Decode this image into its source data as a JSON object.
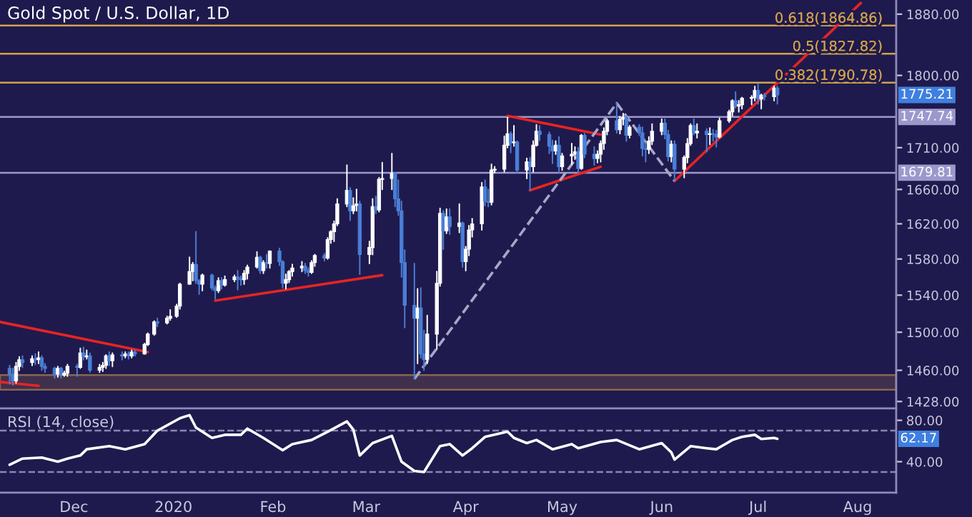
{
  "chart_data": [
    {
      "type": "candlestick",
      "title": "Gold Spot / U.S. Dollar, 1D",
      "log": "y",
      "tick_labels": "y",
      "xlim": [
        "2019-11-08",
        "2020-08-13"
      ],
      "ylim": [
        1421,
        1899
      ],
      "yticks": [
        {
          "value": 1428,
          "label": "1428.00"
        },
        {
          "value": 1460,
          "label": "1460.00"
        },
        {
          "value": 1500,
          "label": "1500.00"
        },
        {
          "value": 1540,
          "label": "1540.00"
        },
        {
          "value": 1580,
          "label": "1580.00"
        },
        {
          "value": 1620,
          "label": "1620.00"
        },
        {
          "value": 1660,
          "label": "1660.00"
        },
        {
          "value": 1710,
          "label": "1710.00"
        },
        {
          "value": 1800,
          "label": "1800.00"
        },
        {
          "value": 1880,
          "label": "1880.00"
        }
      ],
      "bands": [
        {
          "axis": "y",
          "from": 1440,
          "to": 1455,
          "color": "#8a6450"
        }
      ],
      "ref_lines": [
        {
          "axis": "y",
          "value": 1747.74,
          "label": "1747.74",
          "color": "#9d98cc",
          "line_style": "solid"
        },
        {
          "axis": "y",
          "value": 1679.81,
          "label": "1679.81",
          "color": "#9d98cc",
          "line_style": "solid"
        },
        {
          "axis": "y",
          "value": 1790.78,
          "label": "0.382(1790.78)",
          "color": "#d2a24a",
          "line_style": "solid"
        },
        {
          "axis": "y",
          "value": 1827.82,
          "label": "0.5(1827.82)",
          "color": "#d2a24a",
          "line_style": "solid"
        },
        {
          "axis": "y",
          "value": 1864.86,
          "label": "0.618(1864.86)",
          "color": "#d2a24a",
          "line_style": "solid"
        }
      ],
      "annotations": [
        "1775.21"
      ],
      "series": [
        {
          "type": "line",
          "color": "#e52424",
          "line_style": "solid",
          "x": [
            "2019-11-08",
            "2019-12-24"
          ],
          "values": [
            1511,
            1479
          ]
        },
        {
          "type": "line",
          "color": "#e52424",
          "line_style": "solid",
          "x": [
            "2019-11-08",
            "2019-11-20"
          ],
          "values": [
            1448,
            1444
          ]
        },
        {
          "type": "line",
          "color": "#e52424",
          "line_style": "solid",
          "x": [
            "2020-01-14",
            "2020-03-06"
          ],
          "values": [
            1534,
            1562
          ]
        },
        {
          "type": "line",
          "color": "#e52424",
          "line_style": "solid",
          "x": [
            "2020-04-14",
            "2020-05-13"
          ],
          "values": [
            1749,
            1726
          ]
        },
        {
          "type": "line",
          "color": "#e52424",
          "line_style": "solid",
          "x": [
            "2020-04-21",
            "2020-05-13"
          ],
          "values": [
            1659,
            1687
          ]
        },
        {
          "type": "line",
          "color": "#e52424",
          "line_style": "solid",
          "x": [
            "2020-06-05",
            "2020-08-02"
          ],
          "values": [
            1670,
            1895
          ]
        },
        {
          "type": "line",
          "color": "#a8a6c8",
          "line_style": "dashed",
          "x": [
            "2020-03-16",
            "2020-05-18",
            "2020-06-05"
          ],
          "values": [
            1451,
            1765,
            1670
          ]
        },
        {
          "type": "candlestick",
          "x": [
            "2019-11-11",
            "2019-11-12",
            "2019-11-13",
            "2019-11-14",
            "2019-11-15",
            "2019-11-18",
            "2019-11-19",
            "2019-11-20",
            "2019-11-21",
            "2019-11-22",
            "2019-11-25",
            "2019-11-26",
            "2019-11-27",
            "2019-11-28",
            "2019-11-29",
            "2019-12-02",
            "2019-12-03",
            "2019-12-04",
            "2019-12-05",
            "2019-12-06",
            "2019-12-09",
            "2019-12-10",
            "2019-12-11",
            "2019-12-12",
            "2019-12-13",
            "2019-12-16",
            "2019-12-17",
            "2019-12-18",
            "2019-12-19",
            "2019-12-20",
            "2019-12-23",
            "2019-12-24",
            "2019-12-26",
            "2019-12-27",
            "2019-12-30",
            "2019-12-31",
            "2020-01-02",
            "2020-01-03",
            "2020-01-06",
            "2020-01-07",
            "2020-01-08",
            "2020-01-09",
            "2020-01-10",
            "2020-01-13",
            "2020-01-14",
            "2020-01-15",
            "2020-01-16",
            "2020-01-17",
            "2020-01-20",
            "2020-01-21",
            "2020-01-22",
            "2020-01-23",
            "2020-01-24",
            "2020-01-27",
            "2020-01-28",
            "2020-01-29",
            "2020-01-30",
            "2020-01-31",
            "2020-02-03",
            "2020-02-04",
            "2020-02-05",
            "2020-02-06",
            "2020-02-07",
            "2020-02-10",
            "2020-02-11",
            "2020-02-12",
            "2020-02-13",
            "2020-02-14",
            "2020-02-17",
            "2020-02-18",
            "2020-02-19",
            "2020-02-20",
            "2020-02-21",
            "2020-02-24",
            "2020-02-25",
            "2020-02-26",
            "2020-02-27",
            "2020-02-28",
            "2020-03-02",
            "2020-03-03",
            "2020-03-04",
            "2020-03-05",
            "2020-03-06",
            "2020-03-09",
            "2020-03-10",
            "2020-03-11",
            "2020-03-12",
            "2020-03-13",
            "2020-03-16",
            "2020-03-17",
            "2020-03-18",
            "2020-03-19",
            "2020-03-20",
            "2020-03-23",
            "2020-03-24",
            "2020-03-25",
            "2020-03-26",
            "2020-03-27",
            "2020-03-30",
            "2020-03-31",
            "2020-04-01",
            "2020-04-02",
            "2020-04-03",
            "2020-04-06",
            "2020-04-07",
            "2020-04-08",
            "2020-04-09",
            "2020-04-10",
            "2020-04-13",
            "2020-04-14",
            "2020-04-15",
            "2020-04-16",
            "2020-04-17",
            "2020-04-20",
            "2020-04-21",
            "2020-04-22",
            "2020-04-23",
            "2020-04-24",
            "2020-04-27",
            "2020-04-28",
            "2020-04-29",
            "2020-04-30",
            "2020-05-01",
            "2020-05-04",
            "2020-05-05",
            "2020-05-06",
            "2020-05-07",
            "2020-05-08",
            "2020-05-11",
            "2020-05-12",
            "2020-05-13",
            "2020-05-14",
            "2020-05-15",
            "2020-05-18",
            "2020-05-19",
            "2020-05-20",
            "2020-05-21",
            "2020-05-22",
            "2020-05-25",
            "2020-05-26",
            "2020-05-27",
            "2020-05-28",
            "2020-05-29",
            "2020-06-01",
            "2020-06-02",
            "2020-06-03",
            "2020-06-04",
            "2020-06-05",
            "2020-06-08",
            "2020-06-09",
            "2020-06-10",
            "2020-06-11",
            "2020-06-12",
            "2020-06-15",
            "2020-06-16",
            "2020-06-17",
            "2020-06-18",
            "2020-06-19",
            "2020-06-22",
            "2020-06-23",
            "2020-06-24",
            "2020-06-25",
            "2020-06-26",
            "2020-06-29",
            "2020-06-30",
            "2020-07-01",
            "2020-07-02",
            "2020-07-03",
            "2020-07-06",
            "2020-07-07"
          ],
          "ohlc": [
            [
              1462,
              1465,
              1446,
              1456
            ],
            [
              1456,
              1462,
              1445,
              1449
            ],
            [
              1449,
              1468,
              1447,
              1464
            ],
            [
              1464,
              1474,
              1460,
              1471
            ],
            [
              1471,
              1475,
              1463,
              1468
            ],
            [
              1468,
              1475,
              1465,
              1472
            ],
            [
              1472,
              1477,
              1466,
              1471
            ],
            [
              1471,
              1479,
              1467,
              1473
            ],
            [
              1473,
              1475,
              1460,
              1464
            ],
            [
              1464,
              1467,
              1458,
              1462
            ],
            [
              1462,
              1463,
              1452,
              1456
            ],
            [
              1456,
              1464,
              1453,
              1462
            ],
            [
              1462,
              1463,
              1452,
              1455
            ],
            [
              1455,
              1459,
              1454,
              1457
            ],
            [
              1457,
              1466,
              1454,
              1464
            ],
            [
              1464,
              1466,
              1454,
              1463
            ],
            [
              1463,
              1483,
              1462,
              1478
            ],
            [
              1478,
              1484,
              1471,
              1474
            ],
            [
              1474,
              1481,
              1472,
              1475
            ],
            [
              1475,
              1478,
              1458,
              1460
            ],
            [
              1460,
              1466,
              1458,
              1463
            ],
            [
              1463,
              1468,
              1459,
              1465
            ],
            [
              1465,
              1476,
              1462,
              1475
            ],
            [
              1475,
              1479,
              1465,
              1470
            ],
            [
              1470,
              1478,
              1464,
              1476
            ],
            [
              1476,
              1479,
              1471,
              1475
            ],
            [
              1475,
              1479,
              1473,
              1477
            ],
            [
              1477,
              1479,
              1472,
              1475
            ],
            [
              1475,
              1481,
              1473,
              1479
            ],
            [
              1479,
              1481,
              1475,
              1477
            ],
            [
              1477,
              1488,
              1477,
              1487
            ],
            [
              1487,
              1499,
              1486,
              1498
            ],
            [
              1498,
              1512,
              1497,
              1511
            ],
            [
              1511,
              1515,
              1506,
              1510
            ],
            [
              1510,
              1517,
              1509,
              1515
            ],
            [
              1515,
              1524,
              1513,
              1517
            ],
            [
              1517,
              1530,
              1516,
              1528
            ],
            [
              1528,
              1553,
              1525,
              1552
            ],
            [
              1552,
              1582,
              1552,
              1566
            ],
            [
              1566,
              1576,
              1556,
              1574
            ],
            [
              1574,
              1611,
              1553,
              1556
            ],
            [
              1556,
              1557,
              1541,
              1552
            ],
            [
              1552,
              1563,
              1545,
              1562
            ],
            [
              1562,
              1563,
              1546,
              1548
            ],
            [
              1548,
              1550,
              1536,
              1545
            ],
            [
              1545,
              1559,
              1543,
              1556
            ],
            [
              1556,
              1559,
              1547,
              1551
            ],
            [
              1551,
              1561,
              1550,
              1557
            ],
            [
              1557,
              1562,
              1555,
              1560
            ],
            [
              1560,
              1567,
              1546,
              1558
            ],
            [
              1558,
              1561,
              1551,
              1557
            ],
            [
              1557,
              1567,
              1552,
              1564
            ],
            [
              1564,
              1573,
              1558,
              1571
            ],
            [
              1571,
              1588,
              1570,
              1582
            ],
            [
              1582,
              1583,
              1564,
              1567
            ],
            [
              1567,
              1578,
              1564,
              1576
            ],
            [
              1576,
              1585,
              1570,
              1575
            ],
            [
              1575,
              1589,
              1570,
              1589
            ],
            [
              1589,
              1592,
              1573,
              1577
            ],
            [
              1577,
              1578,
              1548,
              1553
            ],
            [
              1553,
              1563,
              1547,
              1557
            ],
            [
              1557,
              1567,
              1554,
              1566
            ],
            [
              1566,
              1574,
              1561,
              1570
            ],
            [
              1570,
              1577,
              1566,
              1572
            ],
            [
              1572,
              1575,
              1564,
              1567
            ],
            [
              1567,
              1570,
              1561,
              1565
            ],
            [
              1565,
              1578,
              1564,
              1576
            ],
            [
              1576,
              1585,
              1572,
              1584
            ],
            [
              1584,
              1586,
              1578,
              1581
            ],
            [
              1581,
              1604,
              1580,
              1602
            ],
            [
              1602,
              1612,
              1598,
              1611
            ],
            [
              1611,
              1623,
              1600,
              1620
            ],
            [
              1620,
              1649,
              1618,
              1643
            ],
            [
              1643,
              1689,
              1640,
              1659
            ],
            [
              1659,
              1662,
              1624,
              1635
            ],
            [
              1635,
              1650,
              1632,
              1641
            ],
            [
              1641,
              1660,
              1635,
              1643
            ],
            [
              1643,
              1646,
              1563,
              1585
            ],
            [
              1585,
              1600,
              1575,
              1593
            ],
            [
              1593,
              1649,
              1585,
              1640
            ],
            [
              1640,
              1652,
              1632,
              1636
            ],
            [
              1636,
              1674,
              1634,
              1672
            ],
            [
              1672,
              1692,
              1660,
              1673
            ],
            [
              1673,
              1703,
              1660,
              1679
            ],
            [
              1679,
              1680,
              1640,
              1649
            ],
            [
              1649,
              1671,
              1630,
              1635
            ],
            [
              1635,
              1646,
              1560,
              1576
            ],
            [
              1576,
              1590,
              1505,
              1529
            ],
            [
              1529,
              1575,
              1451,
              1515
            ],
            [
              1515,
              1547,
              1467,
              1526
            ],
            [
              1526,
              1548,
              1473,
              1477
            ],
            [
              1477,
              1502,
              1460,
              1471
            ],
            [
              1471,
              1518,
              1467,
              1498
            ],
            [
              1498,
              1566,
              1482,
              1553
            ],
            [
              1553,
              1638,
              1550,
              1632
            ],
            [
              1632,
              1635,
              1591,
              1612
            ],
            [
              1612,
              1637,
              1609,
              1628
            ],
            [
              1628,
              1637,
              1608,
              1617
            ],
            [
              1617,
              1643,
              1610,
              1621
            ],
            [
              1621,
              1622,
              1571,
              1577
            ],
            [
              1577,
              1594,
              1567,
              1591
            ],
            [
              1591,
              1618,
              1584,
              1613
            ],
            [
              1613,
              1626,
              1605,
              1620
            ],
            [
              1620,
              1668,
              1613,
              1663
            ],
            [
              1663,
              1671,
              1641,
              1646
            ],
            [
              1646,
              1660,
              1640,
              1645
            ],
            [
              1645,
              1690,
              1642,
              1683
            ],
            [
              1683,
              1687,
              1680,
              1684
            ],
            [
              1684,
              1724,
              1681,
              1713
            ],
            [
              1713,
              1747,
              1710,
              1727
            ],
            [
              1727,
              1729,
              1704,
              1716
            ],
            [
              1716,
              1737,
              1712,
              1717
            ],
            [
              1717,
              1718,
              1680,
              1683
            ],
            [
              1683,
              1697,
              1673,
              1693
            ],
            [
              1693,
              1698,
              1659,
              1687
            ],
            [
              1687,
              1718,
              1681,
              1713
            ],
            [
              1713,
              1738,
              1712,
              1730
            ],
            [
              1730,
              1737,
              1719,
              1726
            ],
            [
              1726,
              1729,
              1703,
              1712
            ],
            [
              1712,
              1719,
              1691,
              1706
            ],
            [
              1706,
              1718,
              1702,
              1713
            ],
            [
              1713,
              1723,
              1680,
              1687
            ],
            [
              1687,
              1703,
              1683,
              1700
            ],
            [
              1700,
              1715,
              1690,
              1702
            ],
            [
              1702,
              1711,
              1696,
              1705
            ],
            [
              1705,
              1710,
              1680,
              1685
            ],
            [
              1685,
              1726,
              1684,
              1725
            ],
            [
              1725,
              1727,
              1698,
              1702
            ],
            [
              1702,
              1711,
              1689,
              1697
            ],
            [
              1697,
              1706,
              1692,
              1702
            ],
            [
              1702,
              1718,
              1693,
              1715
            ],
            [
              1715,
              1734,
              1708,
              1730
            ],
            [
              1730,
              1745,
              1726,
              1743
            ],
            [
              1743,
              1765,
              1728,
              1732
            ],
            [
              1732,
              1748,
              1727,
              1745
            ],
            [
              1745,
              1752,
              1738,
              1747
            ],
            [
              1747,
              1749,
              1718,
              1725
            ],
            [
              1725,
              1737,
              1722,
              1735
            ],
            [
              1735,
              1738,
              1725,
              1728
            ],
            [
              1728,
              1735,
              1700,
              1709
            ],
            [
              1709,
              1716,
              1693,
              1708
            ],
            [
              1708,
              1723,
              1703,
              1718
            ],
            [
              1718,
              1739,
              1714,
              1730
            ],
            [
              1730,
              1745,
              1726,
              1740
            ],
            [
              1740,
              1745,
              1721,
              1726
            ],
            [
              1726,
              1731,
              1694,
              1699
            ],
            [
              1699,
              1718,
              1693,
              1714
            ],
            [
              1714,
              1718,
              1670,
              1684
            ],
            [
              1684,
              1700,
              1674,
              1698
            ],
            [
              1698,
              1721,
              1692,
              1715
            ],
            [
              1715,
              1739,
              1713,
              1737
            ],
            [
              1737,
              1745,
              1726,
              1728
            ],
            [
              1728,
              1739,
              1722,
              1730
            ],
            [
              1730,
              1733,
              1705,
              1726
            ],
            [
              1726,
              1734,
              1714,
              1727
            ],
            [
              1727,
              1732,
              1718,
              1726
            ],
            [
              1726,
              1731,
              1711,
              1723
            ],
            [
              1723,
              1746,
              1722,
              1743
            ],
            [
              1743,
              1756,
              1741,
              1754
            ],
            [
              1754,
              1769,
              1749,
              1768
            ],
            [
              1768,
              1779,
              1759,
              1761
            ],
            [
              1761,
              1768,
              1754,
              1763
            ],
            [
              1763,
              1772,
              1758,
              1771
            ],
            [
              1771,
              1774,
              1763,
              1772
            ],
            [
              1772,
              1786,
              1768,
              1781
            ],
            [
              1781,
              1789,
              1764,
              1770
            ],
            [
              1770,
              1776,
              1758,
              1775
            ],
            [
              1775,
              1777,
              1769,
              1773
            ],
            [
              1773,
              1786,
              1768,
              1784
            ],
            [
              1784,
              1786,
              1764,
              1775.21
            ]
          ],
          "colors": [
            "#4a7fd6",
            "#4a7fd6",
            "#ffffff",
            "#ffffff",
            "#4a7fd6",
            "#ffffff",
            "#4a7fd6",
            "#ffffff",
            "#4a7fd6",
            "#4a7fd6",
            "#4a7fd6",
            "#ffffff",
            "#4a7fd6",
            "#ffffff",
            "#ffffff",
            "#4a7fd6",
            "#ffffff",
            "#4a7fd6",
            "#ffffff",
            "#4a7fd6",
            "#ffffff",
            "#ffffff",
            "#ffffff",
            "#4a7fd6",
            "#ffffff",
            "#4a7fd6",
            "#ffffff",
            "#4a7fd6",
            "#ffffff",
            "#4a7fd6",
            "#ffffff",
            "#ffffff",
            "#ffffff",
            "#4a7fd6",
            "#ffffff",
            "#ffffff",
            "#ffffff",
            "#ffffff",
            "#ffffff",
            "#ffffff",
            "#4a7fd6",
            "#4a7fd6",
            "#ffffff",
            "#4a7fd6",
            "#4a7fd6",
            "#ffffff",
            "#4a7fd6",
            "#ffffff",
            "#ffffff",
            "#4a7fd6",
            "#4a7fd6",
            "#ffffff",
            "#ffffff",
            "#ffffff",
            "#4a7fd6",
            "#ffffff",
            "#4a7fd6",
            "#ffffff",
            "#4a7fd6",
            "#4a7fd6",
            "#ffffff",
            "#ffffff",
            "#ffffff",
            "#ffffff",
            "#4a7fd6",
            "#4a7fd6",
            "#ffffff",
            "#ffffff",
            "#4a7fd6",
            "#ffffff",
            "#ffffff",
            "#ffffff",
            "#ffffff",
            "#ffffff",
            "#4a7fd6",
            "#ffffff",
            "#ffffff",
            "#4a7fd6",
            "#ffffff",
            "#ffffff",
            "#4a7fd6",
            "#ffffff",
            "#ffffff",
            "#ffffff",
            "#4a7fd6",
            "#4a7fd6",
            "#4a7fd6",
            "#4a7fd6",
            "#4a7fd6",
            "#ffffff",
            "#4a7fd6",
            "#4a7fd6",
            "#ffffff",
            "#ffffff",
            "#ffffff",
            "#4a7fd6",
            "#ffffff",
            "#4a7fd6",
            "#ffffff",
            "#4a7fd6",
            "#ffffff",
            "#ffffff",
            "#ffffff",
            "#ffffff",
            "#4a7fd6",
            "#4a7fd6",
            "#ffffff",
            "#ffffff",
            "#ffffff",
            "#ffffff",
            "#4a7fd6",
            "#ffffff",
            "#4a7fd6",
            "#ffffff",
            "#4a7fd6",
            "#ffffff",
            "#ffffff",
            "#4a7fd6",
            "#4a7fd6",
            "#4a7fd6",
            "#ffffff",
            "#4a7fd6",
            "#ffffff",
            "#ffffff",
            "#ffffff",
            "#4a7fd6",
            "#ffffff",
            "#4a7fd6",
            "#4a7fd6",
            "#ffffff",
            "#ffffff",
            "#ffffff",
            "#ffffff",
            "#4a7fd6",
            "#ffffff",
            "#ffffff",
            "#4a7fd6",
            "#ffffff",
            "#4a7fd6",
            "#4a7fd6",
            "#4a7fd6",
            "#ffffff",
            "#ffffff",
            "#ffffff",
            "#4a7fd6",
            "#4a7fd6",
            "#ffffff",
            "#4a7fd6",
            "#ffffff",
            "#ffffff",
            "#ffffff",
            "#4a7fd6",
            "#ffffff",
            "#4a7fd6",
            "#ffffff",
            "#4a7fd6",
            "#4a7fd6",
            "#ffffff",
            "#ffffff",
            "#ffffff",
            "#4a7fd6",
            "#ffffff",
            "#ffffff",
            "#ffffff",
            "#ffffff",
            "#4a7fd6",
            "#ffffff",
            "#4a7fd6",
            "#ffffff",
            "#4a7fd6"
          ]
        }
      ]
    },
    {
      "type": "line",
      "annotations": [
        "RSI (14, close)",
        "62.17"
      ],
      "xlim": [
        "2019-11-08",
        "2020-08-13"
      ],
      "ylim": [
        10,
        90
      ],
      "xticks": [
        {
          "value": "2019-12-01",
          "label": "Dec"
        },
        {
          "value": "2020-01-01",
          "label": "2020"
        },
        {
          "value": "2020-02-01",
          "label": "Feb"
        },
        {
          "value": "2020-03-01",
          "label": "Mar"
        },
        {
          "value": "2020-04-01",
          "label": "Apr"
        },
        {
          "value": "2020-05-01",
          "label": "May"
        },
        {
          "value": "2020-06-01",
          "label": "Jun"
        },
        {
          "value": "2020-07-01",
          "label": "Jul"
        },
        {
          "value": "2020-08-01",
          "label": "Aug"
        }
      ],
      "yticks": [
        {
          "value": 40,
          "label": "40.00"
        },
        {
          "value": 80,
          "label": "80.00"
        }
      ],
      "ref_lines": [
        {
          "axis": "y",
          "value": 70,
          "color": "#8a86b0",
          "line_style": "dashed"
        },
        {
          "axis": "y",
          "value": 30,
          "color": "#8a86b0",
          "line_style": "dashed"
        }
      ],
      "series": [
        {
          "color": "#ffffff",
          "line_style": "solid",
          "x": [
            "2019-11-11",
            "2019-11-15",
            "2019-11-21",
            "2019-11-26",
            "2019-11-29",
            "2019-12-03",
            "2019-12-05",
            "2019-12-12",
            "2019-12-17",
            "2019-12-23",
            "2019-12-27",
            "2020-01-03",
            "2020-01-06",
            "2020-01-08",
            "2020-01-13",
            "2020-01-17",
            "2020-01-22",
            "2020-01-24",
            "2020-01-29",
            "2020-02-04",
            "2020-02-07",
            "2020-02-13",
            "2020-02-18",
            "2020-02-24",
            "2020-02-26",
            "2020-02-28",
            "2020-03-03",
            "2020-03-09",
            "2020-03-12",
            "2020-03-16",
            "2020-03-19",
            "2020-03-24",
            "2020-03-27",
            "2020-03-31",
            "2020-04-03",
            "2020-04-07",
            "2020-04-14",
            "2020-04-16",
            "2020-04-20",
            "2020-04-23",
            "2020-04-28",
            "2020-05-04",
            "2020-05-06",
            "2020-05-13",
            "2020-05-18",
            "2020-05-25",
            "2020-06-01",
            "2020-06-04",
            "2020-06-05",
            "2020-06-10",
            "2020-06-15",
            "2020-06-18",
            "2020-06-23",
            "2020-06-26",
            "2020-06-30",
            "2020-07-02",
            "2020-07-06",
            "2020-07-07"
          ],
          "values": [
            37,
            43,
            44,
            40,
            43,
            46,
            52,
            55,
            52,
            57,
            70,
            82,
            85,
            73,
            63,
            66,
            66,
            72,
            63,
            51,
            57,
            61,
            69,
            79,
            71,
            46,
            58,
            65,
            40,
            31,
            30,
            55,
            57,
            46,
            53,
            64,
            69,
            63,
            58,
            61,
            52,
            57,
            53,
            59,
            61,
            52,
            58,
            49,
            42,
            55,
            53,
            52,
            61,
            64,
            66,
            62,
            63,
            62.17
          ]
        }
      ]
    }
  ]
}
